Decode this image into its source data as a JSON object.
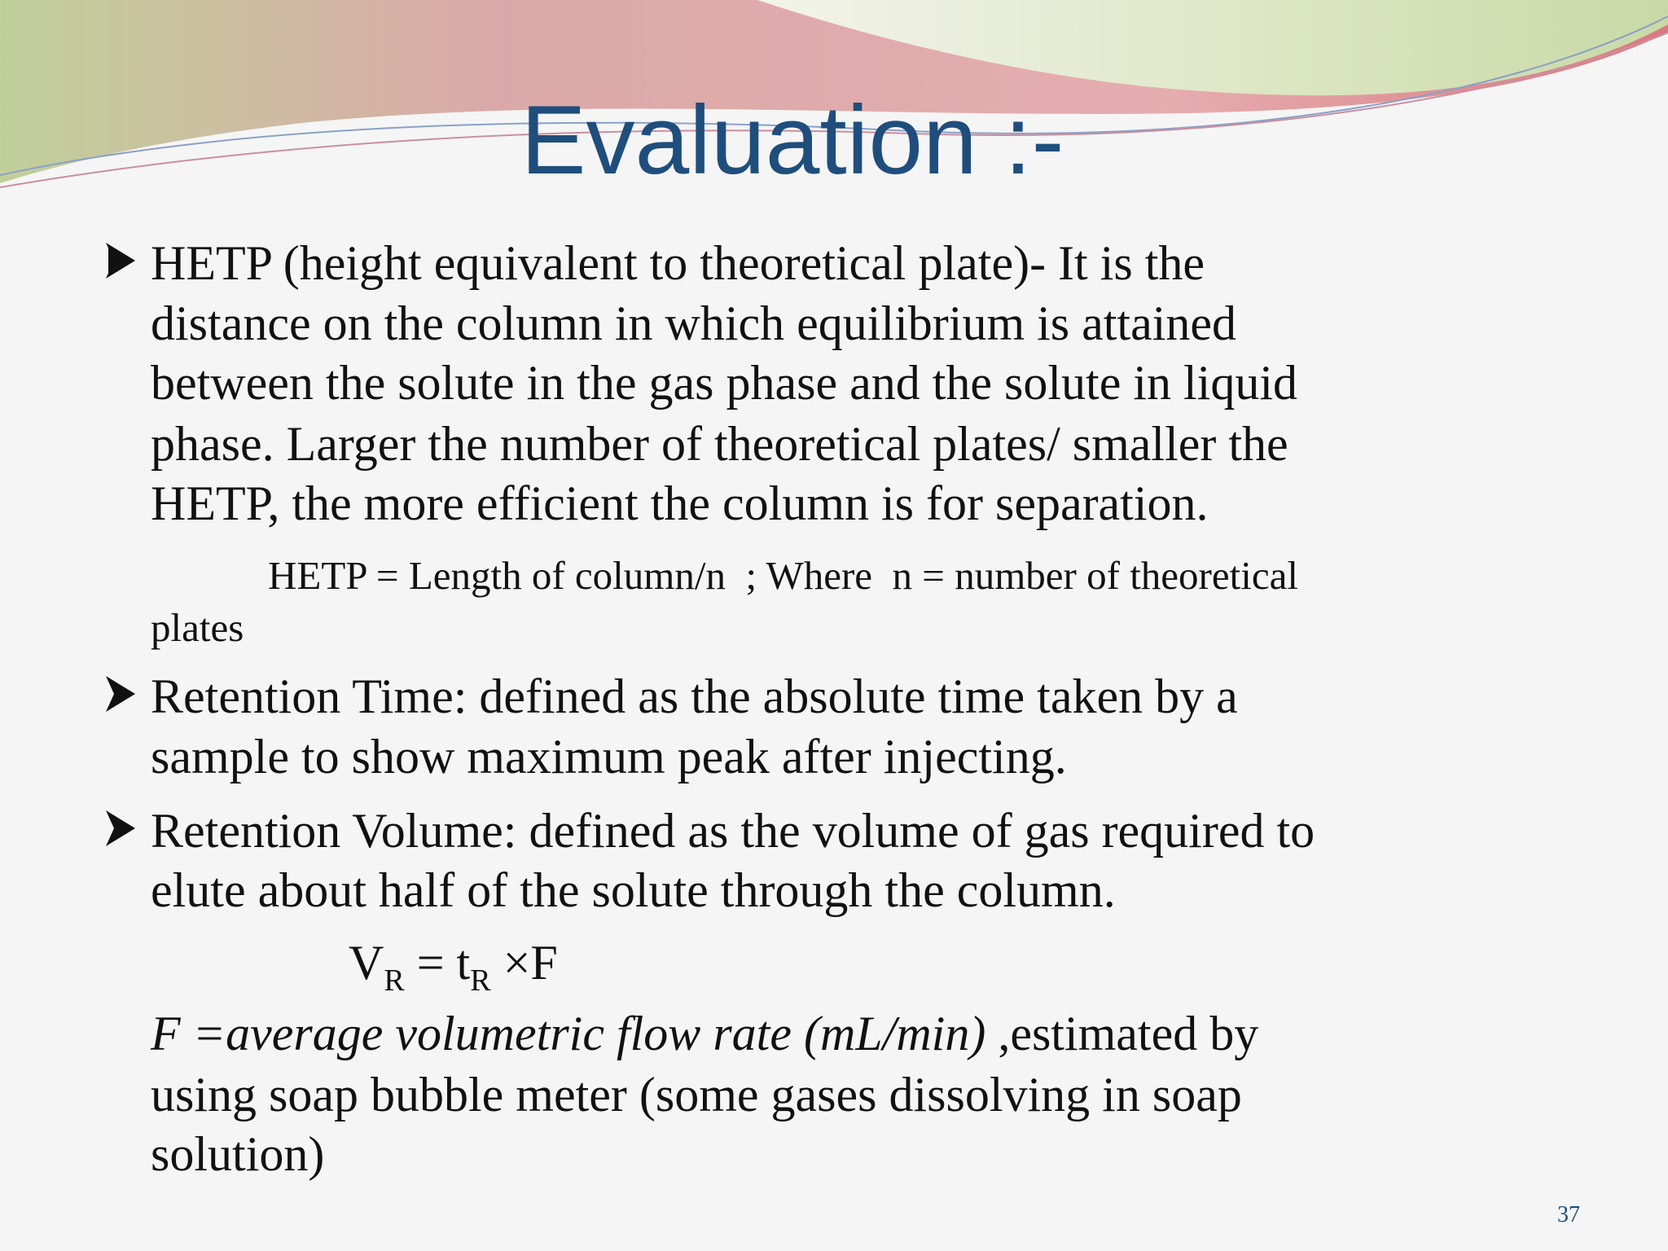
{
  "header": {
    "title": "Evaluation :-"
  },
  "bullets": [
    {
      "lines": [
        "HETP (height equivalent to theoretical plate)- It is the",
        "distance on the column in which equilibrium is attained",
        "between the solute in the gas phase and the solute in liquid",
        "phase. Larger the number of theoretical plates/ smaller the",
        "HETP, the more efficient the column is for separation."
      ],
      "equation": [
        "HETP = Length of column/n  ; Where  n = number of theoretical",
        "plates"
      ]
    },
    {
      "lines": [
        "Retention Time: defined as the absolute time taken by a",
        "sample to show maximum peak after injecting."
      ]
    },
    {
      "lines": [
        "Retention Volume: defined as the volume of gas required to",
        "elute about half of the solute through the column."
      ]
    }
  ],
  "formula": {
    "v": "V",
    "v_sub": "R",
    "eq": "= t",
    "t_sub": "R",
    "rest": "×F"
  },
  "note": {
    "italic": "F =average volumetric flow rate (mL/min)",
    "lines": [
      " ,estimated by",
      "using soap bubble meter (some gases dissolving in soap",
      "solution)"
    ]
  },
  "footer": {
    "page_number": "37"
  }
}
